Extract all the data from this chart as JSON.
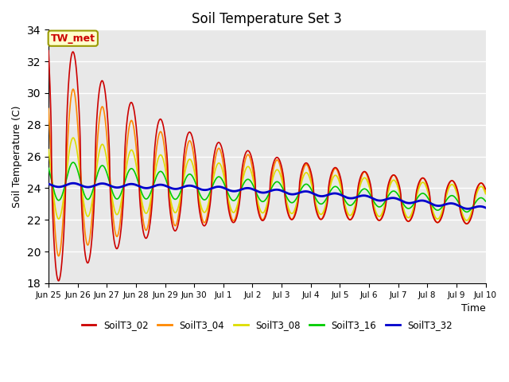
{
  "title": "Soil Temperature Set 3",
  "xlabel": "Time",
  "ylabel": "Soil Temperature (C)",
  "ylim": [
    18,
    34
  ],
  "yticks": [
    18,
    20,
    22,
    24,
    26,
    28,
    30,
    32,
    34
  ],
  "bg_color": "#e8e8e8",
  "annotation_text": "TW_met",
  "annotation_bg": "#ffffcc",
  "annotation_border": "#999900",
  "series_colors": {
    "SoilT3_02": "#cc0000",
    "SoilT3_04": "#ff8800",
    "SoilT3_08": "#dddd00",
    "SoilT3_16": "#00cc00",
    "SoilT3_32": "#0000cc"
  },
  "line_width": 1.2,
  "tick_labels": [
    "Jun 25",
    "Jun 26",
    "Jun 27",
    "Jun 28",
    "Jun 29",
    "Jun 30",
    "Jul 1",
    "Jul 2",
    "Jul 3",
    "Jul 4",
    "Jul 5",
    "Jul 6",
    "Jul 7",
    "Jul 8",
    "Jul 9",
    "Jul 10"
  ]
}
